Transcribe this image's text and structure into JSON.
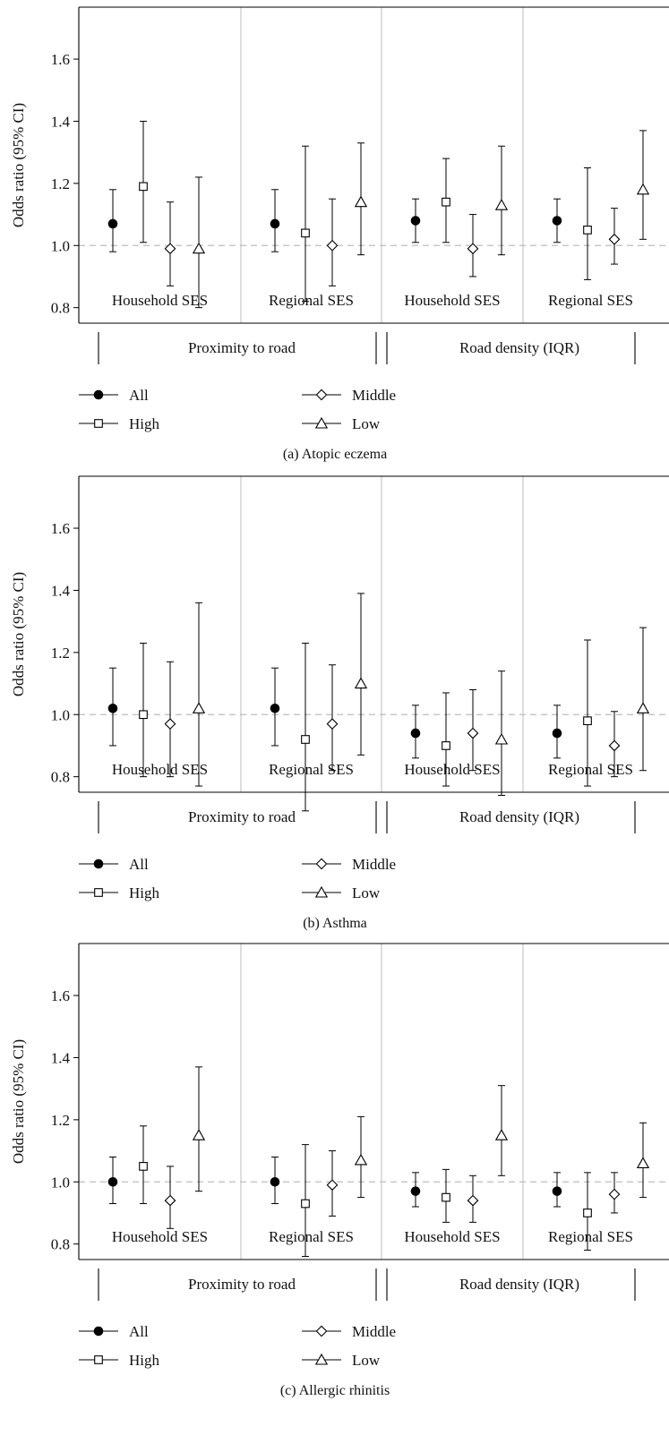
{
  "colors": {
    "axis": "#000000",
    "divider": "#c8c8c8",
    "reference_line": "#bdbdbd",
    "marker_fill_all": "#000000",
    "marker_fill_open": "#ffffff"
  },
  "chart_data": [
    {
      "type": "scatter",
      "caption": "(a)  Atopic eczema",
      "ylabel": "Odds ratio (95% CI)",
      "ylim": [
        0.75,
        1.75
      ],
      "yticks": [
        0.8,
        1.0,
        1.2,
        1.4,
        1.6
      ],
      "ytick_labels": [
        "0.8",
        "1.0",
        "1.2",
        "1.4",
        "1.6"
      ],
      "reference_line": 1.0,
      "groups": [
        "Proximity to road",
        "Road density (IQR)"
      ],
      "panels": [
        {
          "group": 0,
          "label": "Household SES",
          "points": [
            {
              "series": "All",
              "or": 1.07,
              "lo": 0.98,
              "hi": 1.18
            },
            {
              "series": "High",
              "or": 1.19,
              "lo": 1.01,
              "hi": 1.4
            },
            {
              "series": "Middle",
              "or": 0.99,
              "lo": 0.87,
              "hi": 1.14
            },
            {
              "series": "Low",
              "or": 0.99,
              "lo": 0.8,
              "hi": 1.22
            }
          ]
        },
        {
          "group": 0,
          "label": "Regional SES",
          "points": [
            {
              "series": "All",
              "or": 1.07,
              "lo": 0.98,
              "hi": 1.18
            },
            {
              "series": "High",
              "or": 1.04,
              "lo": 0.82,
              "hi": 1.32
            },
            {
              "series": "Middle",
              "or": 1.0,
              "lo": 0.87,
              "hi": 1.15
            },
            {
              "series": "Low",
              "or": 1.14,
              "lo": 0.97,
              "hi": 1.33
            }
          ]
        },
        {
          "group": 1,
          "label": "Household SES",
          "points": [
            {
              "series": "All",
              "or": 1.08,
              "lo": 1.01,
              "hi": 1.15
            },
            {
              "series": "High",
              "or": 1.14,
              "lo": 1.01,
              "hi": 1.28
            },
            {
              "series": "Middle",
              "or": 0.99,
              "lo": 0.9,
              "hi": 1.1
            },
            {
              "series": "Low",
              "or": 1.13,
              "lo": 0.97,
              "hi": 1.32
            }
          ]
        },
        {
          "group": 1,
          "label": "Regional SES",
          "points": [
            {
              "series": "All",
              "or": 1.08,
              "lo": 1.01,
              "hi": 1.15
            },
            {
              "series": "High",
              "or": 1.05,
              "lo": 0.89,
              "hi": 1.25
            },
            {
              "series": "Middle",
              "or": 1.02,
              "lo": 0.94,
              "hi": 1.12
            },
            {
              "series": "Low",
              "or": 1.18,
              "lo": 1.02,
              "hi": 1.37
            }
          ]
        }
      ],
      "legend": [
        {
          "name": "All",
          "marker": "filled-circle"
        },
        {
          "name": "High",
          "marker": "open-square"
        },
        {
          "name": "Middle",
          "marker": "open-diamond"
        },
        {
          "name": "Low",
          "marker": "open-triangle"
        }
      ]
    },
    {
      "type": "scatter",
      "caption": "(b)  Asthma",
      "ylabel": "Odds ratio (95% CI)",
      "ylim": [
        0.75,
        1.75
      ],
      "yticks": [
        0.8,
        1.0,
        1.2,
        1.4,
        1.6
      ],
      "ytick_labels": [
        "0.8",
        "1.0",
        "1.2",
        "1.4",
        "1.6"
      ],
      "reference_line": 1.0,
      "groups": [
        "Proximity to road",
        "Road density (IQR)"
      ],
      "panels": [
        {
          "group": 0,
          "label": "Household SES",
          "points": [
            {
              "series": "All",
              "or": 1.02,
              "lo": 0.9,
              "hi": 1.15
            },
            {
              "series": "High",
              "or": 1.0,
              "lo": 0.8,
              "hi": 1.23
            },
            {
              "series": "Middle",
              "or": 0.97,
              "lo": 0.8,
              "hi": 1.17
            },
            {
              "series": "Low",
              "or": 1.02,
              "lo": 0.77,
              "hi": 1.36
            }
          ]
        },
        {
          "group": 0,
          "label": "Regional SES",
          "points": [
            {
              "series": "All",
              "or": 1.02,
              "lo": 0.9,
              "hi": 1.15
            },
            {
              "series": "High",
              "or": 0.92,
              "lo": 0.69,
              "hi": 1.23
            },
            {
              "series": "Middle",
              "or": 0.97,
              "lo": 0.82,
              "hi": 1.16
            },
            {
              "series": "Low",
              "or": 1.1,
              "lo": 0.87,
              "hi": 1.39
            }
          ]
        },
        {
          "group": 1,
          "label": "Household SES",
          "points": [
            {
              "series": "All",
              "or": 0.94,
              "lo": 0.86,
              "hi": 1.03
            },
            {
              "series": "High",
              "or": 0.9,
              "lo": 0.77,
              "hi": 1.07
            },
            {
              "series": "Middle",
              "or": 0.94,
              "lo": 0.82,
              "hi": 1.08
            },
            {
              "series": "Low",
              "or": 0.92,
              "lo": 0.74,
              "hi": 1.14
            }
          ]
        },
        {
          "group": 1,
          "label": "Regional SES",
          "points": [
            {
              "series": "All",
              "or": 0.94,
              "lo": 0.86,
              "hi": 1.03
            },
            {
              "series": "High",
              "or": 0.98,
              "lo": 0.77,
              "hi": 1.24
            },
            {
              "series": "Middle",
              "or": 0.9,
              "lo": 0.8,
              "hi": 1.01
            },
            {
              "series": "Low",
              "or": 1.02,
              "lo": 0.82,
              "hi": 1.28
            }
          ]
        }
      ],
      "legend": [
        {
          "name": "All",
          "marker": "filled-circle"
        },
        {
          "name": "High",
          "marker": "open-square"
        },
        {
          "name": "Middle",
          "marker": "open-diamond"
        },
        {
          "name": "Low",
          "marker": "open-triangle"
        }
      ]
    },
    {
      "type": "scatter",
      "caption": "(c)  Allergic rhinitis",
      "ylabel": "Odds ratio (95% CI)",
      "ylim": [
        0.75,
        1.75
      ],
      "yticks": [
        0.8,
        1.0,
        1.2,
        1.4,
        1.6
      ],
      "ytick_labels": [
        "0.8",
        "1.0",
        "1.2",
        "1.4",
        "1.6"
      ],
      "reference_line": 1.0,
      "groups": [
        "Proximity to road",
        "Road density (IQR)"
      ],
      "panels": [
        {
          "group": 0,
          "label": "Household SES",
          "points": [
            {
              "series": "All",
              "or": 1.0,
              "lo": 0.93,
              "hi": 1.08
            },
            {
              "series": "High",
              "or": 1.05,
              "lo": 0.93,
              "hi": 1.18
            },
            {
              "series": "Middle",
              "or": 0.94,
              "lo": 0.85,
              "hi": 1.05
            },
            {
              "series": "Low",
              "or": 1.15,
              "lo": 0.97,
              "hi": 1.37
            }
          ]
        },
        {
          "group": 0,
          "label": "Regional SES",
          "points": [
            {
              "series": "All",
              "or": 1.0,
              "lo": 0.93,
              "hi": 1.08
            },
            {
              "series": "High",
              "or": 0.93,
              "lo": 0.76,
              "hi": 1.12
            },
            {
              "series": "Middle",
              "or": 0.99,
              "lo": 0.89,
              "hi": 1.1
            },
            {
              "series": "Low",
              "or": 1.07,
              "lo": 0.95,
              "hi": 1.21
            }
          ]
        },
        {
          "group": 1,
          "label": "Household SES",
          "points": [
            {
              "series": "All",
              "or": 0.97,
              "lo": 0.92,
              "hi": 1.03
            },
            {
              "series": "High",
              "or": 0.95,
              "lo": 0.87,
              "hi": 1.04
            },
            {
              "series": "Middle",
              "or": 0.94,
              "lo": 0.87,
              "hi": 1.02
            },
            {
              "series": "Low",
              "or": 1.15,
              "lo": 1.02,
              "hi": 1.31
            }
          ]
        },
        {
          "group": 1,
          "label": "Regional SES",
          "points": [
            {
              "series": "All",
              "or": 0.97,
              "lo": 0.92,
              "hi": 1.03
            },
            {
              "series": "High",
              "or": 0.9,
              "lo": 0.78,
              "hi": 1.03
            },
            {
              "series": "Middle",
              "or": 0.96,
              "lo": 0.9,
              "hi": 1.03
            },
            {
              "series": "Low",
              "or": 1.06,
              "lo": 0.95,
              "hi": 1.19
            }
          ]
        }
      ],
      "legend": [
        {
          "name": "All",
          "marker": "filled-circle"
        },
        {
          "name": "High",
          "marker": "open-square"
        },
        {
          "name": "Middle",
          "marker": "open-diamond"
        },
        {
          "name": "Low",
          "marker": "open-triangle"
        }
      ]
    }
  ]
}
